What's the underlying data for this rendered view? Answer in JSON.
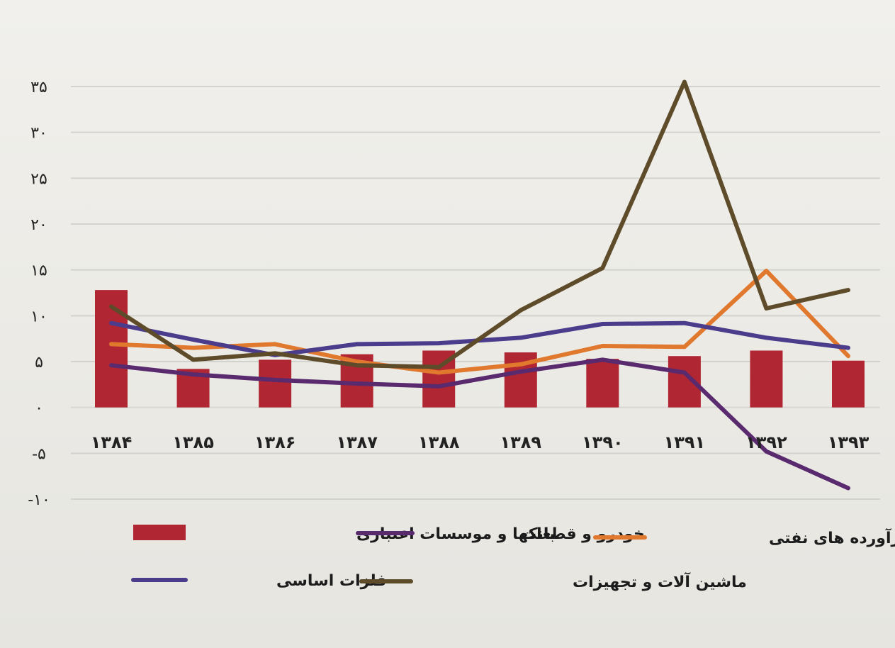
{
  "chart_data": {
    "type": "bar+line",
    "title": "",
    "xlabel": "",
    "ylabel": "",
    "categories": [
      "۱۳۸۴",
      "۱۳۸۵",
      "۱۳۸۶",
      "۱۳۸۷",
      "۱۳۸۸",
      "۱۳۸۹",
      "۱۳۹۰",
      "۱۳۹۱",
      "۱۳۹۲",
      "۱۳۹۳"
    ],
    "yticks": [
      {
        "value": 35,
        "label": "۳۵"
      },
      {
        "value": 30,
        "label": "۳۰"
      },
      {
        "value": 25,
        "label": "۲۵"
      },
      {
        "value": 20,
        "label": "۲۰"
      },
      {
        "value": 15,
        "label": "۱۵"
      },
      {
        "value": 10,
        "label": "۱۰"
      },
      {
        "value": 5,
        "label": "۵"
      },
      {
        "value": 0,
        "label": "۰"
      },
      {
        "value": -5,
        "label": "-۵"
      },
      {
        "value": -10,
        "label": "-۱۰"
      }
    ],
    "ylim": [
      -10,
      35
    ],
    "grid": true,
    "legend_position": "bottom",
    "series": [
      {
        "name": "بانکها و موسسات اعتباری",
        "kind": "bar",
        "color": "#b02632",
        "values": [
          12.8,
          4.2,
          5.2,
          5.8,
          6.2,
          6.0,
          5.3,
          5.6,
          6.2,
          5.1
        ]
      },
      {
        "name": "خودرو و قطعات",
        "kind": "line",
        "color": "#5a2a6e",
        "values": [
          4.6,
          3.6,
          3.0,
          2.6,
          2.3,
          3.9,
          5.2,
          3.8,
          -4.8,
          -8.8
        ]
      },
      {
        "name": "فرآورده های نفتی",
        "kind": "line",
        "color": "#e0782e",
        "values": [
          6.9,
          6.5,
          6.9,
          5.0,
          3.8,
          4.7,
          6.7,
          6.6,
          14.9,
          5.6
        ]
      },
      {
        "name": "فلزات اساسی",
        "kind": "line",
        "color": "#4b3c8c",
        "values": [
          9.2,
          7.4,
          5.7,
          6.9,
          7.0,
          7.6,
          9.1,
          9.2,
          7.6,
          6.5
        ]
      },
      {
        "name": "ماشین آلات و تجهیزات",
        "kind": "line",
        "color": "#5e4b2a",
        "values": [
          11.0,
          5.2,
          5.9,
          4.6,
          4.4,
          10.6,
          15.2,
          35.5,
          10.8,
          12.8
        ]
      }
    ]
  },
  "legend": {
    "items": [
      {
        "key": "banks",
        "label": "بانکها و موسسات اعتباری",
        "color": "#b02632",
        "icon": "bar-swatch"
      },
      {
        "key": "auto",
        "label": "خودرو و قطعات",
        "color": "#5a2a6e",
        "icon": "line-swatch"
      },
      {
        "key": "oil",
        "label": "فرآورده های نفتی",
        "color": "#e0782e",
        "icon": "line-swatch"
      },
      {
        "key": "metals",
        "label": "فلزات اساسی",
        "color": "#4b3c8c",
        "icon": "line-swatch"
      },
      {
        "key": "machinery",
        "label": "ماشین آلات و تجهیزات",
        "color": "#5e4b2a",
        "icon": "line-swatch"
      }
    ]
  }
}
